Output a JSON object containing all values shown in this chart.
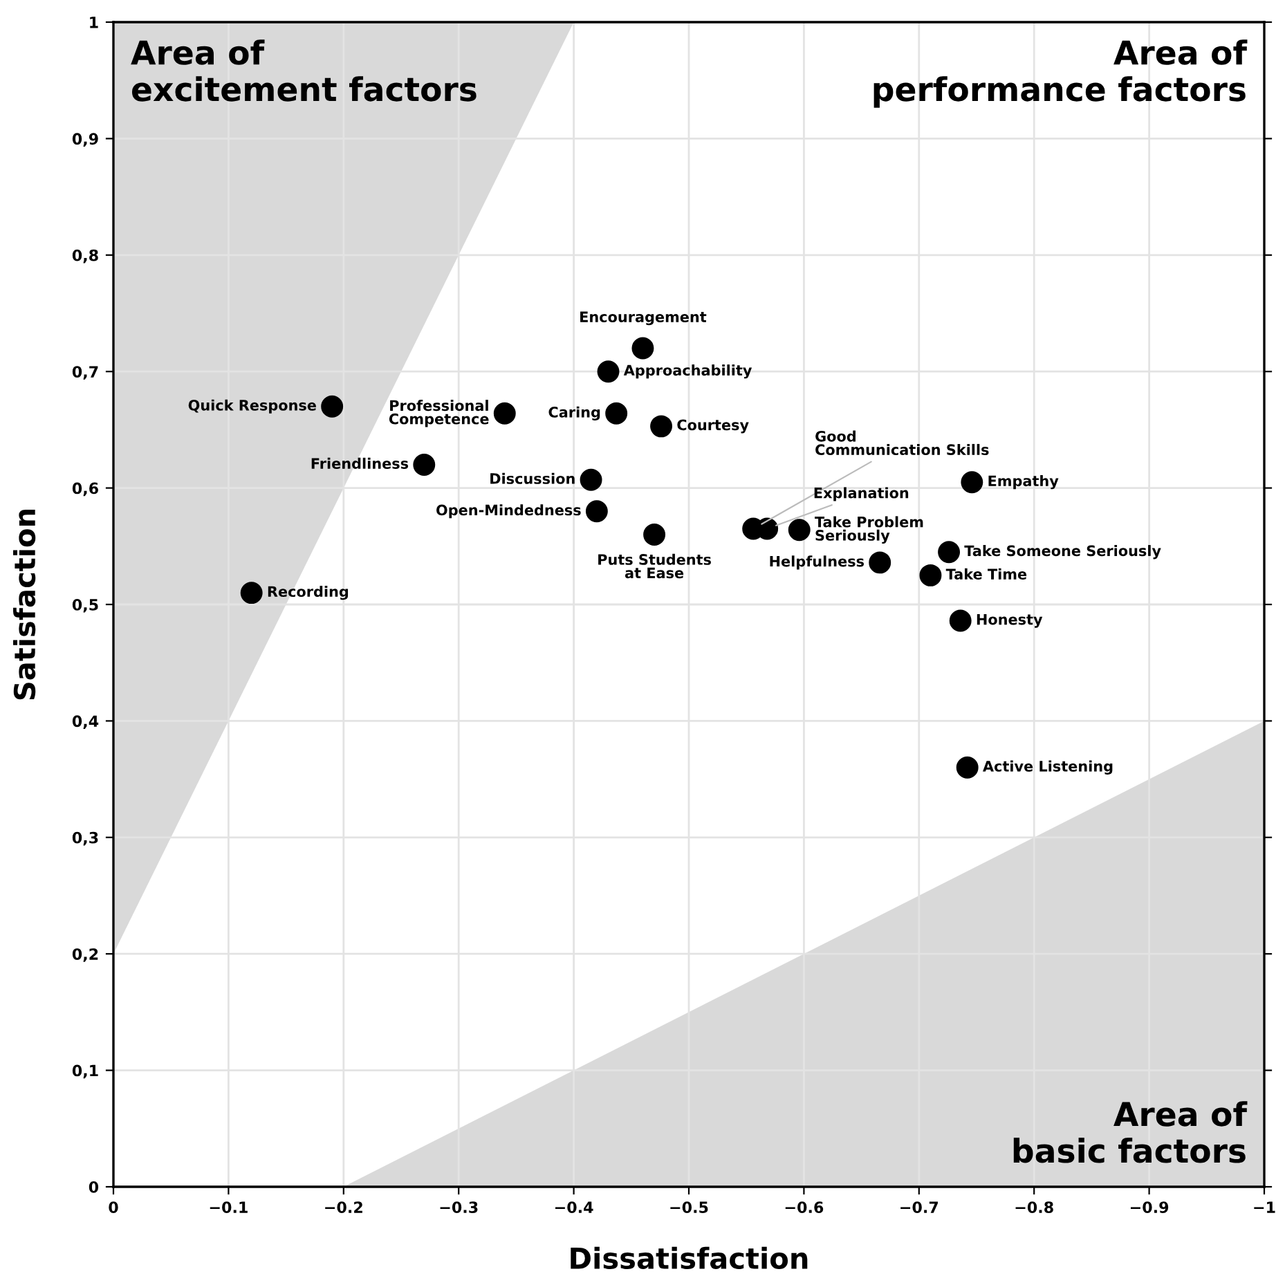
{
  "chart_data": {
    "type": "scatter",
    "xlabel": "Dissatisfaction",
    "ylabel": "Satisfaction",
    "xlim": [
      0,
      -1
    ],
    "ylim": [
      0,
      1
    ],
    "xticks": [
      0,
      {
        "value": -0.1,
        "label": "−0.1"
      },
      {
        "value": -0.2,
        "label": "−0.2"
      },
      {
        "value": -0.3,
        "label": "−0.3"
      },
      {
        "value": -0.4,
        "label": "−0.4"
      },
      {
        "value": -0.5,
        "label": "−0.5"
      },
      {
        "value": -0.6,
        "label": "−0.6"
      },
      {
        "value": -0.7,
        "label": "−0.7"
      },
      {
        "value": -0.8,
        "label": "−0.8"
      },
      {
        "value": -0.9,
        "label": "−0.9"
      },
      {
        "value": -1,
        "label": "−1"
      }
    ],
    "yticks": [
      0,
      {
        "value": 0.1,
        "label": "0,1"
      },
      {
        "value": 0.2,
        "label": "0,2"
      },
      {
        "value": 0.3,
        "label": "0,3"
      },
      {
        "value": 0.4,
        "label": "0,4"
      },
      {
        "value": 0.5,
        "label": "0,5"
      },
      {
        "value": 0.6,
        "label": "0,6"
      },
      {
        "value": 0.7,
        "label": "0,7"
      },
      {
        "value": 0.8,
        "label": "0,8"
      },
      {
        "value": 0.9,
        "label": "0,9"
      },
      1
    ],
    "grid": true,
    "series": [
      {
        "type": "area",
        "color": "#d9d9d9",
        "x": [
          0,
          -0.4
        ],
        "values": [
          0.2,
          1
        ]
      },
      {
        "type": "area",
        "color": "#d9d9d9",
        "x": [
          -0.2,
          -1
        ],
        "values": [
          0,
          0.4
        ]
      },
      {
        "marker": "circle",
        "color": "#000000",
        "x": [
          -0.19,
          -0.12,
          -0.27,
          -0.34,
          -0.46,
          -0.43,
          -0.437,
          -0.476,
          -0.415,
          -0.42,
          -0.47,
          -0.556,
          -0.568,
          -0.596,
          -0.666,
          -0.746,
          -0.726,
          -0.71,
          -0.736,
          -0.742
        ],
        "values": [
          0.67,
          0.51,
          0.62,
          0.664,
          0.72,
          0.7,
          0.664,
          0.653,
          0.607,
          0.58,
          0.56,
          0.565,
          0.565,
          0.564,
          0.536,
          0.605,
          0.545,
          0.525,
          0.486,
          0.36
        ]
      }
    ],
    "annotations": [
      "Area of\nexcitement factors",
      "Area of\nperformance factors",
      "Area of\nbasic factors",
      {
        "text": "Quick Response",
        "x": -0.19,
        "y": 0.67
      },
      {
        "text": "Recording",
        "x": -0.12,
        "y": 0.51
      },
      {
        "text": "Friendliness",
        "x": -0.27,
        "y": 0.62
      },
      {
        "text": "Professional\nCompetence",
        "x": -0.34,
        "y": 0.664
      },
      {
        "text": "Encouragement",
        "x": -0.46,
        "y": 0.72
      },
      {
        "text": "Approachability",
        "x": -0.43,
        "y": 0.7
      },
      {
        "text": "Caring",
        "x": -0.437,
        "y": 0.664
      },
      {
        "text": "Courtesy",
        "x": -0.476,
        "y": 0.653
      },
      {
        "text": "Discussion",
        "x": -0.415,
        "y": 0.607
      },
      {
        "text": "Open-Mindedness",
        "x": -0.42,
        "y": 0.58
      },
      {
        "text": "Puts Students\nat Ease",
        "x": -0.47,
        "y": 0.56
      },
      {
        "text": "Good\nCommunication Skills",
        "x": -0.556,
        "y": 0.565
      },
      {
        "text": "Explanation",
        "x": -0.568,
        "y": 0.565
      },
      {
        "text": "Take Problem\nSeriously",
        "x": -0.596,
        "y": 0.564
      },
      {
        "text": "Helpfulness",
        "x": -0.666,
        "y": 0.536
      },
      {
        "text": "Empathy",
        "x": -0.746,
        "y": 0.605
      },
      {
        "text": "Take Someone Seriously",
        "x": -0.726,
        "y": 0.545
      },
      {
        "text": "Take Time",
        "x": -0.71,
        "y": 0.525
      },
      {
        "text": "Honesty",
        "x": -0.736,
        "y": 0.486
      },
      {
        "text": "Active Listening",
        "x": -0.742,
        "y": 0.36
      }
    ]
  }
}
